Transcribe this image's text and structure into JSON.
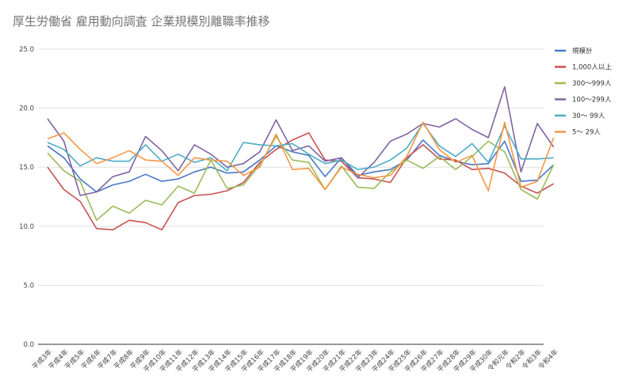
{
  "chart_data": {
    "type": "line",
    "title": "厚生労働省 雇用動向調査 企業規模別離職率推移",
    "xlabel": "",
    "ylabel": "",
    "ylim": [
      0,
      25
    ],
    "yticks": [
      "0.0",
      "5.0",
      "10.0",
      "15.0",
      "20.0",
      "25.0"
    ],
    "grid": true,
    "legend_position": "right",
    "x": [
      "平成3年",
      "平成4年",
      "平成5年",
      "平成6年",
      "平成7年",
      "平成8年",
      "平成9年",
      "平成10年",
      "平成11年",
      "平成12年",
      "平成13年",
      "平成14年",
      "平成15年",
      "平成16年",
      "平成17年",
      "平成18年",
      "平成19年",
      "平成20年",
      "平成21年",
      "平成22年",
      "平成23年",
      "平成24年",
      "平成25年",
      "平成26年",
      "平成27年",
      "平成28年",
      "平成29年",
      "平成30年",
      "令和元年",
      "令和2年",
      "令和3年",
      "令和4年"
    ],
    "series": [
      {
        "name": "規模計",
        "color": "#4a78c6",
        "values": [
          16.8,
          15.8,
          14.0,
          12.9,
          13.5,
          13.8,
          14.4,
          13.8,
          14.0,
          14.6,
          15.0,
          14.5,
          14.6,
          15.6,
          16.8,
          16.3,
          16.0,
          14.2,
          15.8,
          14.3,
          14.6,
          14.8,
          15.6,
          17.3,
          16.0,
          15.5,
          15.2,
          15.3,
          17.2,
          13.8,
          13.9,
          15.2
        ]
      },
      {
        "name": "1,000人以上",
        "color": "#c95151",
        "values": [
          15.0,
          13.1,
          12.1,
          9.8,
          9.7,
          10.5,
          10.3,
          9.7,
          12.0,
          12.6,
          12.7,
          13.0,
          13.7,
          15.4,
          16.5,
          17.3,
          17.9,
          15.6,
          15.5,
          14.1,
          14.0,
          13.7,
          15.8,
          16.9,
          15.7,
          15.6,
          14.8,
          14.9,
          14.5,
          13.4,
          12.8,
          13.6
        ]
      },
      {
        "name": "300〜999人",
        "color": "#9bbb59",
        "values": [
          16.2,
          14.7,
          13.8,
          10.5,
          11.7,
          11.1,
          12.2,
          11.8,
          13.4,
          12.8,
          15.6,
          13.2,
          13.5,
          15.2,
          17.6,
          15.6,
          15.4,
          13.1,
          15.1,
          13.3,
          13.2,
          14.6,
          15.6,
          14.9,
          15.9,
          14.8,
          15.9,
          17.2,
          16.3,
          13.1,
          12.3,
          15.2
        ]
      },
      {
        "name": "100〜299人",
        "color": "#8064a2",
        "values": [
          19.1,
          17.2,
          12.6,
          12.9,
          14.2,
          14.6,
          17.6,
          16.4,
          14.7,
          16.9,
          16.1,
          15.0,
          15.3,
          16.3,
          19.0,
          16.4,
          16.8,
          15.5,
          15.8,
          14.1,
          15.4,
          17.2,
          17.8,
          18.7,
          18.4,
          19.1,
          18.2,
          17.5,
          21.8,
          14.6,
          18.7,
          16.7
        ]
      },
      {
        "name": "30〜 99人",
        "color": "#4bacc6",
        "values": [
          17.1,
          16.5,
          15.1,
          15.8,
          15.5,
          15.5,
          16.9,
          15.5,
          16.1,
          15.4,
          15.8,
          14.7,
          17.1,
          16.9,
          16.8,
          17.0,
          16.1,
          15.3,
          15.6,
          14.8,
          15.0,
          15.6,
          16.6,
          18.7,
          16.8,
          15.9,
          17.0,
          15.4,
          18.5,
          15.7,
          15.7,
          15.8
        ]
      },
      {
        "name": "5〜 29人",
        "color": "#f79646",
        "values": [
          17.4,
          17.9,
          16.5,
          15.3,
          15.8,
          16.4,
          15.6,
          15.5,
          14.3,
          15.8,
          15.6,
          15.5,
          14.3,
          15.0,
          17.8,
          14.8,
          14.9,
          13.1,
          15.0,
          14.4,
          14.1,
          14.3,
          15.9,
          18.8,
          16.5,
          15.4,
          16.0,
          13.0,
          18.8,
          13.3,
          13.8,
          17.5
        ]
      }
    ]
  }
}
